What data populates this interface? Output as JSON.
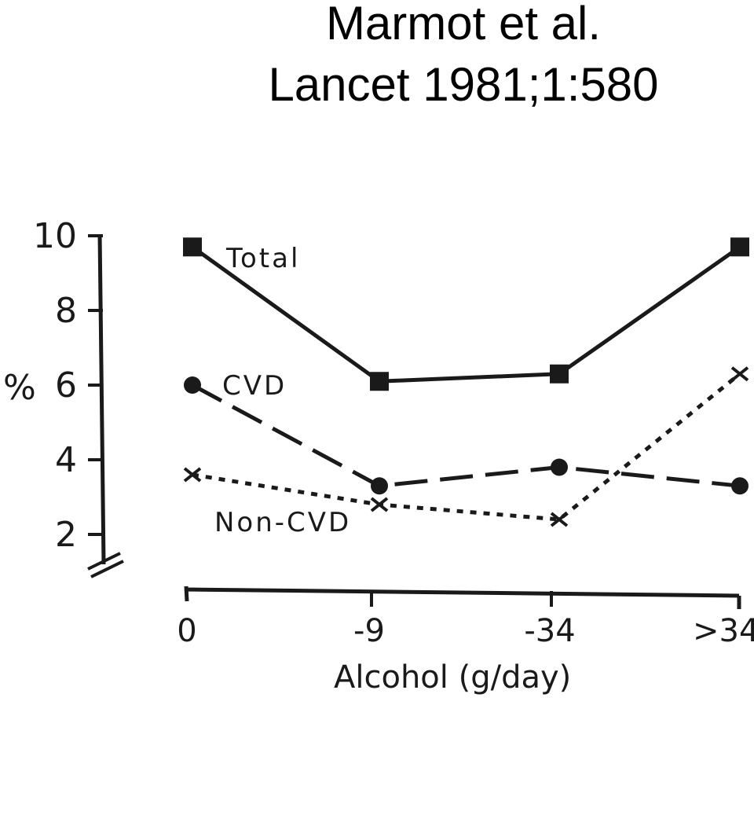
{
  "header": {
    "line1": "Marmot et al.",
    "line2": "Lancet 1981;1:580"
  },
  "chart_data": {
    "type": "line",
    "categories": [
      "0",
      "-9",
      "-34",
      ">34"
    ],
    "series": [
      {
        "name": "Total",
        "values": [
          9.7,
          6.1,
          6.3,
          9.7
        ],
        "marker": "square",
        "dash": "solid"
      },
      {
        "name": "CVD",
        "values": [
          6.0,
          3.3,
          3.8,
          3.3
        ],
        "marker": "circle",
        "dash": "dashed"
      },
      {
        "name": "Non-CVD",
        "values": [
          3.6,
          2.8,
          2.4,
          6.3
        ],
        "marker": "cross",
        "dash": "dotted"
      }
    ],
    "xlabel": "Alcohol (g/day)",
    "ylabel": "%",
    "yticks": [
      "2",
      "4",
      "6",
      "8",
      "10"
    ],
    "ylim": [
      2,
      10
    ],
    "colors": {
      "ink": "#1a1a1a"
    }
  }
}
